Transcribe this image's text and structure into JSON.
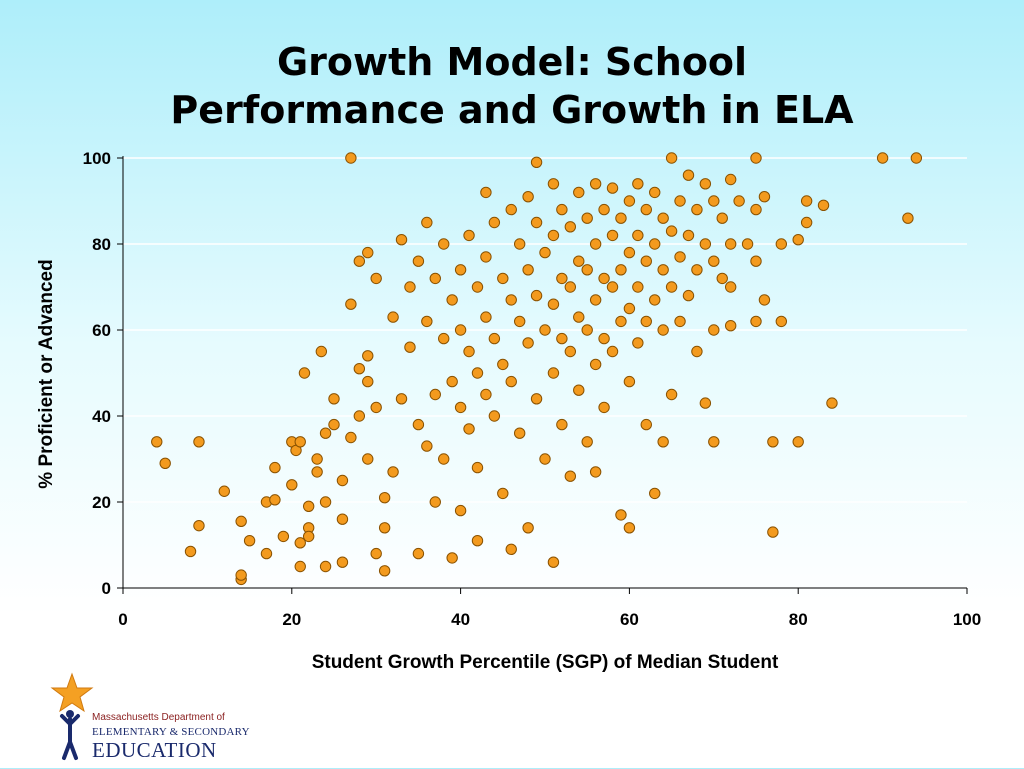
{
  "slide": {
    "title_line1": "Growth Model: School",
    "title_line2": "Performance and Growth in ELA"
  },
  "logo": {
    "line1": "Massachusetts Department of",
    "line2": "ELEMENTARY & SECONDARY",
    "line3": "EDUCATION"
  },
  "colors": {
    "point_fill": "#f39a1e",
    "point_stroke": "#8a5200",
    "gridline": "#ffffff",
    "logo_star": "#f4a023",
    "logo_text_red": "#8a1f1f",
    "logo_text_blue": "#1a2a6c"
  },
  "chart_data": {
    "type": "scatter",
    "title": "Growth Model: School Performance and Growth in ELA",
    "xlabel": "Student Growth Percentile (SGP) of Median Student",
    "ylabel": "% Proficient or Advanced",
    "xlim": [
      0,
      100
    ],
    "ylim": [
      0,
      100
    ],
    "xticks": [
      0,
      20,
      40,
      60,
      80,
      100
    ],
    "yticks": [
      0,
      20,
      40,
      60,
      80,
      100
    ],
    "grid": "horizontal",
    "legend": "none",
    "series": [
      {
        "points": [
          [
            4,
            34
          ],
          [
            5,
            29
          ],
          [
            8,
            8.5
          ],
          [
            9,
            14.5
          ],
          [
            9,
            34
          ],
          [
            12,
            22.5
          ],
          [
            14,
            2
          ],
          [
            14,
            3
          ],
          [
            14,
            15.5
          ],
          [
            15,
            11
          ],
          [
            17,
            8
          ],
          [
            17,
            20
          ],
          [
            18,
            28
          ],
          [
            18,
            20.5
          ],
          [
            19,
            12
          ],
          [
            20,
            24
          ],
          [
            20,
            34
          ],
          [
            20.5,
            32
          ],
          [
            21,
            10.5
          ],
          [
            21,
            5
          ],
          [
            21,
            34
          ],
          [
            21.5,
            50
          ],
          [
            22,
            19
          ],
          [
            22,
            14
          ],
          [
            22,
            12
          ],
          [
            23,
            27
          ],
          [
            23,
            30
          ],
          [
            23.5,
            55
          ],
          [
            24,
            36
          ],
          [
            24,
            20
          ],
          [
            24,
            5
          ],
          [
            25,
            44
          ],
          [
            25,
            38
          ],
          [
            26,
            25
          ],
          [
            26,
            6
          ],
          [
            26,
            16
          ],
          [
            27,
            100
          ],
          [
            27,
            66
          ],
          [
            27,
            35
          ],
          [
            28,
            76
          ],
          [
            28,
            51
          ],
          [
            28,
            40
          ],
          [
            29,
            78
          ],
          [
            29,
            54
          ],
          [
            29,
            48
          ],
          [
            29,
            30
          ],
          [
            30,
            72
          ],
          [
            30,
            42
          ],
          [
            30,
            8
          ],
          [
            31,
            21
          ],
          [
            31,
            14
          ],
          [
            31,
            4
          ],
          [
            32,
            63
          ],
          [
            32,
            27
          ],
          [
            33,
            81
          ],
          [
            33,
            44
          ],
          [
            34,
            70
          ],
          [
            34,
            56
          ],
          [
            35,
            76
          ],
          [
            35,
            38
          ],
          [
            35,
            8
          ],
          [
            36,
            85
          ],
          [
            36,
            62
          ],
          [
            36,
            33
          ],
          [
            37,
            72
          ],
          [
            37,
            45
          ],
          [
            37,
            20
          ],
          [
            38,
            80
          ],
          [
            38,
            58
          ],
          [
            38,
            30
          ],
          [
            39,
            67
          ],
          [
            39,
            48
          ],
          [
            39,
            7
          ],
          [
            40,
            74
          ],
          [
            40,
            60
          ],
          [
            40,
            42
          ],
          [
            40,
            18
          ],
          [
            41,
            82
          ],
          [
            41,
            55
          ],
          [
            41,
            37
          ],
          [
            42,
            70
          ],
          [
            42,
            50
          ],
          [
            42,
            28
          ],
          [
            42,
            11
          ],
          [
            43,
            92
          ],
          [
            43,
            77
          ],
          [
            43,
            63
          ],
          [
            43,
            45
          ],
          [
            44,
            85
          ],
          [
            44,
            58
          ],
          [
            44,
            40
          ],
          [
            45,
            72
          ],
          [
            45,
            52
          ],
          [
            45,
            22
          ],
          [
            46,
            88
          ],
          [
            46,
            67
          ],
          [
            46,
            48
          ],
          [
            46,
            9
          ],
          [
            47,
            80
          ],
          [
            47,
            62
          ],
          [
            47,
            36
          ],
          [
            48,
            91
          ],
          [
            48,
            74
          ],
          [
            48,
            57
          ],
          [
            48,
            14
          ],
          [
            49,
            99
          ],
          [
            49,
            85
          ],
          [
            49,
            68
          ],
          [
            49,
            44
          ],
          [
            50,
            78
          ],
          [
            50,
            60
          ],
          [
            50,
            30
          ],
          [
            51,
            94
          ],
          [
            51,
            82
          ],
          [
            51,
            66
          ],
          [
            51,
            50
          ],
          [
            51,
            6
          ],
          [
            52,
            88
          ],
          [
            52,
            72
          ],
          [
            52,
            58
          ],
          [
            52,
            38
          ],
          [
            53,
            84
          ],
          [
            53,
            70
          ],
          [
            53,
            55
          ],
          [
            53,
            26
          ],
          [
            54,
            92
          ],
          [
            54,
            76
          ],
          [
            54,
            63
          ],
          [
            54,
            46
          ],
          [
            55,
            86
          ],
          [
            55,
            74
          ],
          [
            55,
            60
          ],
          [
            55,
            34
          ],
          [
            56,
            94
          ],
          [
            56,
            80
          ],
          [
            56,
            67
          ],
          [
            56,
            52
          ],
          [
            56,
            27
          ],
          [
            57,
            88
          ],
          [
            57,
            72
          ],
          [
            57,
            58
          ],
          [
            57,
            42
          ],
          [
            58,
            93
          ],
          [
            58,
            82
          ],
          [
            58,
            70
          ],
          [
            58,
            55
          ],
          [
            59,
            86
          ],
          [
            59,
            74
          ],
          [
            59,
            62
          ],
          [
            59,
            17
          ],
          [
            60,
            90
          ],
          [
            60,
            78
          ],
          [
            60,
            65
          ],
          [
            60,
            48
          ],
          [
            60,
            14
          ],
          [
            61,
            94
          ],
          [
            61,
            82
          ],
          [
            61,
            70
          ],
          [
            61,
            57
          ],
          [
            62,
            88
          ],
          [
            62,
            76
          ],
          [
            62,
            62
          ],
          [
            62,
            38
          ],
          [
            63,
            92
          ],
          [
            63,
            80
          ],
          [
            63,
            67
          ],
          [
            63,
            22
          ],
          [
            64,
            86
          ],
          [
            64,
            74
          ],
          [
            64,
            60
          ],
          [
            64,
            34
          ],
          [
            65,
            100
          ],
          [
            65,
            83
          ],
          [
            65,
            70
          ],
          [
            65,
            45
          ],
          [
            66,
            90
          ],
          [
            66,
            77
          ],
          [
            66,
            62
          ],
          [
            67,
            96
          ],
          [
            67,
            82
          ],
          [
            67,
            68
          ],
          [
            68,
            88
          ],
          [
            68,
            74
          ],
          [
            68,
            55
          ],
          [
            69,
            94
          ],
          [
            69,
            80
          ],
          [
            69,
            43
          ],
          [
            70,
            90
          ],
          [
            70,
            76
          ],
          [
            70,
            60
          ],
          [
            70,
            34
          ],
          [
            71,
            86
          ],
          [
            71,
            72
          ],
          [
            72,
            95
          ],
          [
            72,
            80
          ],
          [
            72,
            70
          ],
          [
            72,
            61
          ],
          [
            73,
            90
          ],
          [
            74,
            80
          ],
          [
            75,
            100
          ],
          [
            75,
            88
          ],
          [
            75,
            76
          ],
          [
            75,
            62
          ],
          [
            76,
            91
          ],
          [
            76,
            67
          ],
          [
            77,
            34
          ],
          [
            77,
            13
          ],
          [
            78,
            80
          ],
          [
            78,
            62
          ],
          [
            80,
            81
          ],
          [
            80,
            34
          ],
          [
            81,
            90
          ],
          [
            81,
            85
          ],
          [
            83,
            89
          ],
          [
            84,
            43
          ],
          [
            90,
            100
          ],
          [
            93,
            86
          ],
          [
            94,
            100
          ]
        ]
      }
    ]
  }
}
